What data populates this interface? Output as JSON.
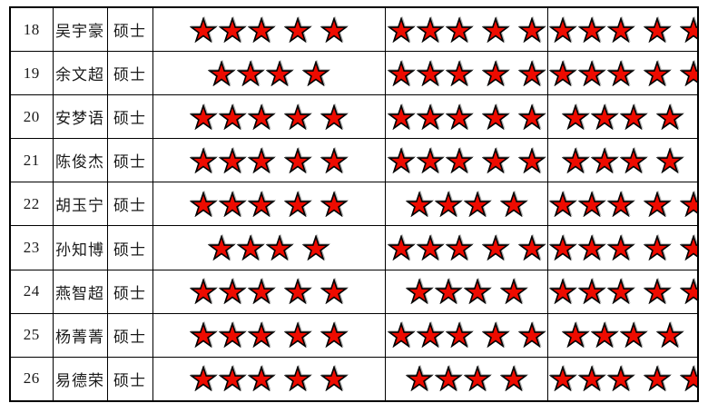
{
  "icons": {
    "star": "★"
  },
  "colors": {
    "star_fill": "#ee0b00",
    "star_stroke": "#000000",
    "star_shadow": "#b3b3b3",
    "border": "#000000",
    "text": "#1a1a1a",
    "background": "#ffffff"
  },
  "table": {
    "rows": [
      {
        "no": "18",
        "name": "吴宇豪",
        "degree": "硕士",
        "ratings": [
          5,
          5,
          5
        ]
      },
      {
        "no": "19",
        "name": "余文超",
        "degree": "硕士",
        "ratings": [
          4,
          5,
          5
        ]
      },
      {
        "no": "20",
        "name": "安梦语",
        "degree": "硕士",
        "ratings": [
          5,
          5,
          4
        ]
      },
      {
        "no": "21",
        "name": "陈俊杰",
        "degree": "硕士",
        "ratings": [
          5,
          5,
          4
        ]
      },
      {
        "no": "22",
        "name": "胡玉宁",
        "degree": "硕士",
        "ratings": [
          5,
          4,
          5
        ]
      },
      {
        "no": "23",
        "name": "孙知博",
        "degree": "硕士",
        "ratings": [
          4,
          5,
          5
        ]
      },
      {
        "no": "24",
        "name": "燕智超",
        "degree": "硕士",
        "ratings": [
          5,
          4,
          5
        ]
      },
      {
        "no": "25",
        "name": "杨菁菁",
        "degree": "硕士",
        "ratings": [
          5,
          5,
          4
        ]
      },
      {
        "no": "26",
        "name": "易德荣",
        "degree": "硕士",
        "ratings": [
          5,
          4,
          5
        ]
      }
    ]
  }
}
